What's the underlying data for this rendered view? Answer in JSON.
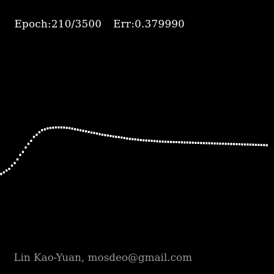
{
  "status": {
    "epoch_label": "Epoch:210/3500",
    "error_label": "Err:0.379990"
  },
  "credit": "Lin Kao-Yuan, mosdeo@gmail.com",
  "colors": {
    "background": "#000000",
    "curve": "#ffffff",
    "status_text": "#ffffff",
    "credit_text": "#9a9a9a"
  },
  "curve_shape": "rises steeply from the left edge, peaks, then gently decays and levels off toward the right"
}
